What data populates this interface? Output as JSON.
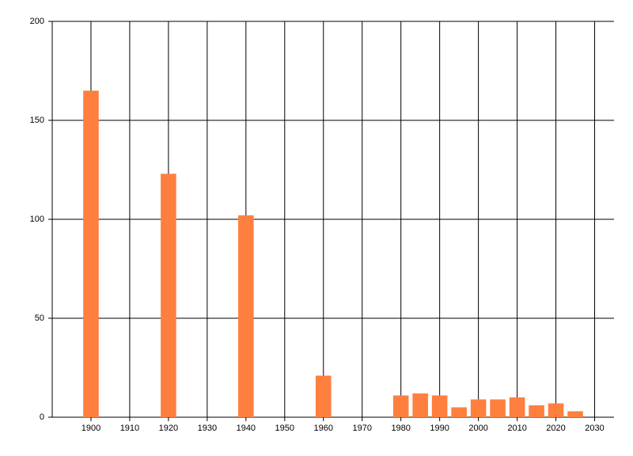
{
  "chart_data": {
    "type": "bar",
    "x": [
      1900,
      1920,
      1940,
      1960,
      1980,
      1985,
      1990,
      1995,
      2000,
      2005,
      2010,
      2015,
      2020,
      2025
    ],
    "values": [
      165,
      123,
      102,
      21,
      11,
      12,
      11,
      5,
      9,
      9,
      10,
      6,
      7,
      3
    ],
    "color": "#ff7f3f",
    "xlim": [
      1890,
      2035
    ],
    "xticks": [
      1900,
      1910,
      1920,
      1930,
      1940,
      1950,
      1960,
      1970,
      1980,
      1990,
      2000,
      2010,
      2020,
      2030
    ],
    "ylim": [
      0,
      200
    ],
    "yticks": [
      0,
      50,
      100,
      150,
      200
    ],
    "grid": true
  }
}
